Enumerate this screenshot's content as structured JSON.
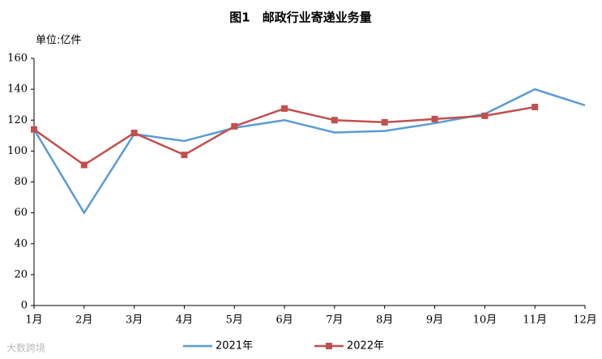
{
  "chart_data": {
    "type": "line",
    "title": "图1　邮政行业寄递业务量",
    "y_unit_label": "单位:亿件",
    "categories": [
      "1月",
      "2月",
      "3月",
      "4月",
      "5月",
      "6月",
      "7月",
      "8月",
      "9月",
      "10月",
      "11月",
      "12月"
    ],
    "series": [
      {
        "name": "2021年",
        "color": "#5b9bd5",
        "values": [
          114,
          60,
          111,
          106.5,
          115,
          120,
          112,
          113,
          118,
          124,
          140,
          129.6
        ]
      },
      {
        "name": "2022年",
        "color": "#c0504d",
        "marker": "square",
        "values": [
          114,
          91,
          111.7,
          97.5,
          116,
          127.5,
          120,
          118.6,
          120.7,
          122.8,
          128.5,
          null
        ]
      }
    ],
    "ylim": [
      0,
      160
    ],
    "yticks": [
      0,
      20,
      40,
      60,
      80,
      100,
      120,
      140,
      160
    ],
    "grid": false,
    "legend": "bottom",
    "watermark": "大数跨境"
  }
}
